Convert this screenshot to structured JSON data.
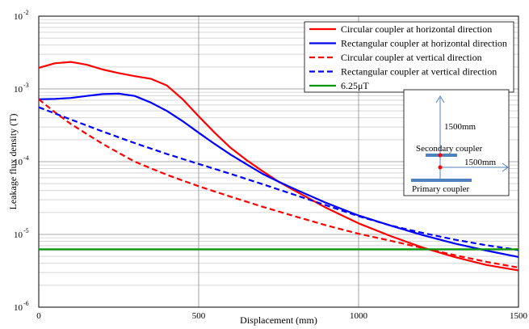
{
  "chart_data": {
    "type": "line",
    "xlabel": "Displacement (mm)",
    "ylabel": "Leakage flux density (T)",
    "xlim": [
      0,
      1500
    ],
    "ylim": [
      1e-06,
      0.01
    ],
    "yscale": "log",
    "grid": true,
    "legend_position": "top-right",
    "x_ticks": [
      {
        "value": 0,
        "label": "0"
      },
      {
        "value": 500,
        "label": "500"
      },
      {
        "value": 1000,
        "label": "1000"
      },
      {
        "value": 1500,
        "label": "1500"
      }
    ],
    "y_ticks": [
      {
        "value": 1e-06,
        "base": "10",
        "exp": "-6"
      },
      {
        "value": 1e-05,
        "base": "10",
        "exp": "-5"
      },
      {
        "value": 0.0001,
        "base": "10",
        "exp": "-4"
      },
      {
        "value": 0.001,
        "base": "10",
        "exp": "-3"
      },
      {
        "value": 0.01,
        "base": "10",
        "exp": "-2"
      }
    ],
    "series": [
      {
        "name": "Circular coupler at horizontal direction",
        "color": "#ff0000",
        "dash": "solid",
        "x": [
          0,
          50,
          100,
          150,
          200,
          250,
          300,
          350,
          400,
          450,
          500,
          550,
          600,
          650,
          700,
          750,
          800,
          900,
          1000,
          1100,
          1200,
          1300,
          1400,
          1500
        ],
        "y": [
          0.00195,
          0.00225,
          0.00235,
          0.00215,
          0.00185,
          0.00165,
          0.0015,
          0.00138,
          0.00112,
          0.00072,
          0.00042,
          0.00025,
          0.000155,
          0.000105,
          7.4e-05,
          5.3e-05,
          4e-05,
          2.3e-05,
          1.42e-05,
          9.5e-06,
          6.6e-06,
          4.9e-06,
          3.8e-06,
          3.2e-06
        ]
      },
      {
        "name": "Rectangular coupler at horizontal direction",
        "color": "#0000ff",
        "dash": "solid",
        "x": [
          0,
          50,
          100,
          150,
          200,
          250,
          300,
          350,
          400,
          450,
          500,
          550,
          600,
          650,
          700,
          750,
          800,
          900,
          1000,
          1100,
          1200,
          1300,
          1400,
          1500
        ],
        "y": [
          0.00072,
          0.00073,
          0.00075,
          0.0008,
          0.00085,
          0.00086,
          0.0008,
          0.00065,
          0.0005,
          0.00036,
          0.00025,
          0.000175,
          0.000125,
          9.2e-05,
          6.8e-05,
          5.3e-05,
          4.2e-05,
          2.7e-05,
          1.82e-05,
          1.32e-05,
          9.8e-06,
          7.5e-06,
          6e-06,
          4.9e-06
        ]
      },
      {
        "name": "Circular coupler at vertical direction",
        "color": "#ff0000",
        "dash": "dashed",
        "x": [
          0,
          50,
          100,
          200,
          300,
          400,
          500,
          600,
          700,
          800,
          900,
          1000,
          1100,
          1200,
          1300,
          1400,
          1500
        ],
        "y": [
          0.00072,
          0.00048,
          0.00033,
          0.000175,
          0.0001,
          6.6e-05,
          4.6e-05,
          3.3e-05,
          2.4e-05,
          1.78e-05,
          1.33e-05,
          1.02e-05,
          8.2e-06,
          6.5e-06,
          5.2e-06,
          4.2e-06,
          3.5e-06
        ]
      },
      {
        "name": "Rectangular coupler at vertical direction",
        "color": "#0000ff",
        "dash": "dashed",
        "x": [
          0,
          100,
          200,
          300,
          400,
          500,
          600,
          700,
          800,
          900,
          1000,
          1100,
          1200,
          1300,
          1400,
          1500
        ],
        "y": [
          0.00056,
          0.00038,
          0.00026,
          0.00018,
          0.000128,
          9.3e-05,
          6.8e-05,
          4.9e-05,
          3.5e-05,
          2.5e-05,
          1.78e-05,
          1.33e-05,
          1.05e-05,
          8.5e-06,
          7.1e-06,
          6.1e-06
        ]
      },
      {
        "name": "6.25μT",
        "color": "#009900",
        "dash": "solid",
        "x": [
          0,
          1500
        ],
        "y": [
          6.25e-06,
          6.25e-06
        ]
      }
    ],
    "inset": {
      "labels": {
        "vertical_distance": "1500mm",
        "horizontal_distance": "1500mm",
        "secondary": "Secondary coupler",
        "primary": "Primary coupler"
      },
      "colors": {
        "arrow": "#4f81bd",
        "coupler": "#4f81bd",
        "point": "#ff0000"
      }
    }
  }
}
